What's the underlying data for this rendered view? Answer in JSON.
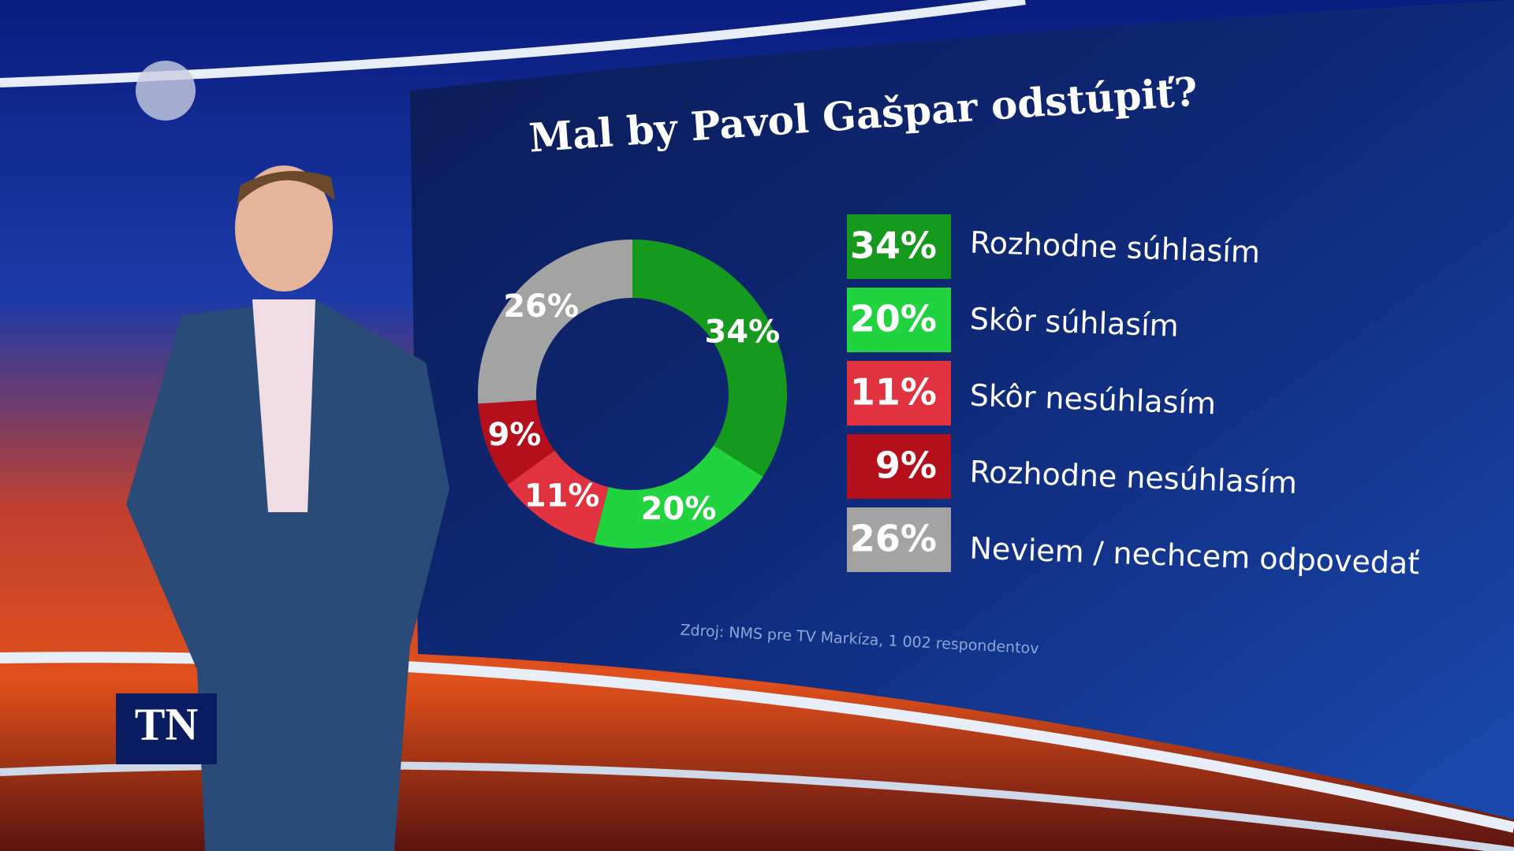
{
  "chart_data": {
    "type": "pie",
    "title": "Mal by Pavol Gašpar odstúpiť?",
    "categories": [
      "Rozhodne súhlasím",
      "Skôr súhlasím",
      "Skôr nesúhlasím",
      "Rozhodne nesúhlasím",
      "Neviem / nechcem odpovedať"
    ],
    "values": [
      34,
      20,
      11,
      9,
      26
    ],
    "value_labels": [
      "34%",
      "20%",
      "11%",
      "9%",
      "26%"
    ],
    "colors": [
      "#169a1e",
      "#22d340",
      "#e0323f",
      "#b3101b",
      "#a3a3a3"
    ],
    "source": "Zdroj: NMS pre TV Markíza, 1 002 respondentov"
  },
  "logo": "TN"
}
